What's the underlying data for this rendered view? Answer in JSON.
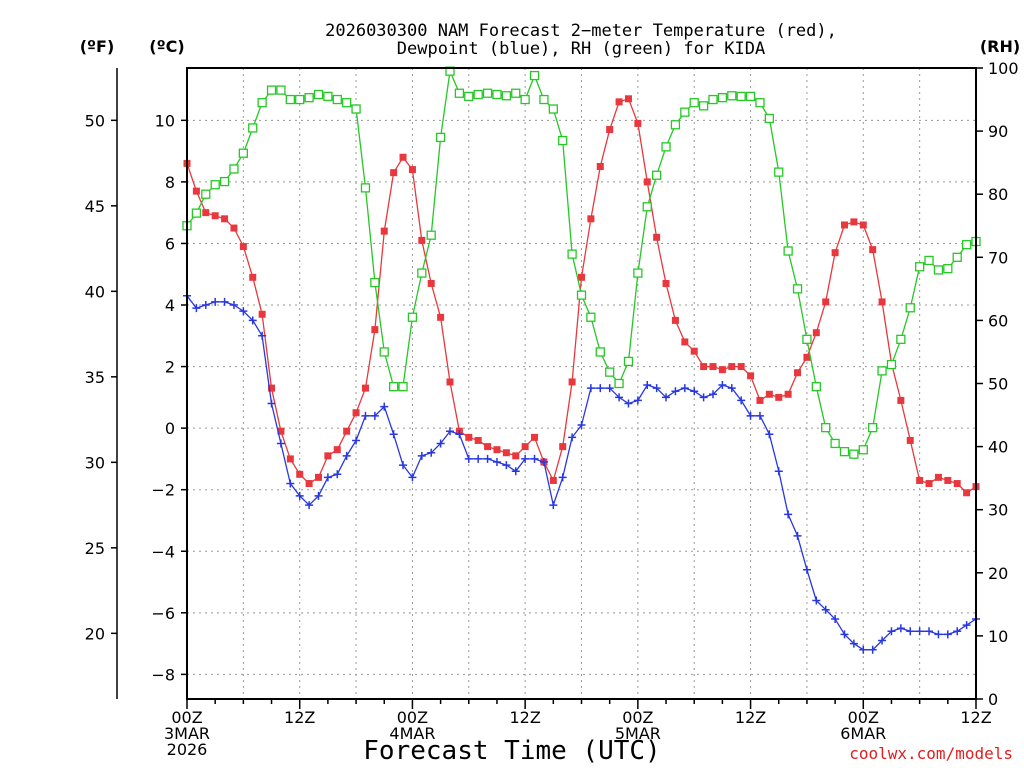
{
  "chart_data": {
    "type": "line",
    "title": "2026030300 NAM Forecast 2−meter Temperature (red),",
    "title2": "Dewpoint (blue), RH (green) for KIDA",
    "xlabel": "Forecast Time (UTC)",
    "credit": "coolwx.com/models",
    "unit_f": "(ºF)",
    "unit_c": "(ºC)",
    "unit_rh": "(RH)",
    "x_unit": "forecast hour",
    "xlim": [
      0,
      84
    ],
    "ylim_c": [
      -8.8,
      11.7
    ],
    "ylim_f": [
      16.16,
      53.06
    ],
    "ylim_rh": [
      0,
      100
    ],
    "grid": true,
    "x_ticks": [
      {
        "hour": 0,
        "lines": [
          "00Z",
          "3MAR",
          "2026"
        ]
      },
      {
        "hour": 12,
        "lines": [
          "12Z"
        ]
      },
      {
        "hour": 24,
        "lines": [
          "00Z",
          "4MAR"
        ]
      },
      {
        "hour": 36,
        "lines": [
          "12Z"
        ]
      },
      {
        "hour": 48,
        "lines": [
          "00Z",
          "5MAR"
        ]
      },
      {
        "hour": 60,
        "lines": [
          "12Z"
        ]
      },
      {
        "hour": 72,
        "lines": [
          "00Z",
          "6MAR"
        ]
      },
      {
        "hour": 84,
        "lines": [
          "12Z"
        ]
      }
    ],
    "y_ticks_c": [
      -8,
      -6,
      -4,
      -2,
      0,
      2,
      4,
      6,
      8,
      10
    ],
    "y_tick_labels_c": [
      "−8",
      "−6",
      "−4",
      "−2",
      "0",
      "2",
      "4",
      "6",
      "8",
      "10"
    ],
    "y_ticks_f": [
      20,
      25,
      30,
      35,
      40,
      45,
      50
    ],
    "y_tick_labels_f": [
      "20",
      "25",
      "30",
      "35",
      "40",
      "45",
      "50"
    ],
    "y_ticks_rh": [
      0,
      10,
      20,
      30,
      40,
      50,
      60,
      70,
      80,
      90,
      100
    ],
    "y_tick_labels_rh": [
      "0",
      "10",
      "20",
      "30",
      "40",
      "50",
      "60",
      "70",
      "80",
      "90",
      "100"
    ],
    "series": [
      {
        "name": "Temperature",
        "axis": "c",
        "color": "#e8383d",
        "marker": "filled-square",
        "x": [
          0,
          1,
          2,
          3,
          4,
          5,
          6,
          7,
          8,
          9,
          10,
          11,
          12,
          13,
          14,
          15,
          16,
          17,
          18,
          19,
          20,
          21,
          22,
          23,
          24,
          25,
          26,
          27,
          28,
          29,
          30,
          31,
          32,
          33,
          34,
          35,
          36,
          37,
          38,
          39,
          40,
          41,
          42,
          43,
          44,
          45,
          46,
          47,
          48,
          49,
          50,
          51,
          52,
          53,
          54,
          55,
          56,
          57,
          58,
          59,
          60,
          61,
          62,
          63,
          64,
          65,
          66,
          67,
          68,
          69,
          70,
          71,
          72,
          73,
          74,
          75,
          76,
          77,
          78,
          79,
          80,
          81,
          82,
          83,
          84
        ],
        "y": [
          8.6,
          7.7,
          7.0,
          6.9,
          6.8,
          6.5,
          5.9,
          4.9,
          3.7,
          1.3,
          -0.1,
          -1.0,
          -1.5,
          -1.8,
          -1.6,
          -0.9,
          -0.7,
          -0.1,
          0.5,
          1.3,
          3.2,
          6.4,
          8.3,
          8.8,
          8.4,
          6.1,
          4.7,
          3.6,
          1.5,
          -0.1,
          -0.3,
          -0.4,
          -0.6,
          -0.7,
          -0.8,
          -0.9,
          -0.6,
          -0.3,
          -1.1,
          -1.7,
          -0.6,
          1.5,
          4.9,
          6.8,
          8.5,
          9.7,
          10.6,
          10.7,
          9.9,
          8.0,
          6.2,
          4.7,
          3.5,
          2.8,
          2.5,
          2.0,
          2.0,
          1.9,
          2.0,
          2.0,
          1.7,
          0.9,
          1.1,
          1.0,
          1.1,
          1.8,
          2.3,
          3.1,
          4.1,
          5.7,
          6.6,
          6.7,
          6.6,
          5.8,
          4.1,
          2.1,
          0.9,
          -0.4,
          -1.7,
          -1.8,
          -1.6,
          -1.7,
          -1.8,
          -2.1,
          -1.9
        ]
      },
      {
        "name": "Dewpoint",
        "axis": "c",
        "color": "#2838e0",
        "marker": "plus",
        "x": [
          0,
          1,
          2,
          3,
          4,
          5,
          6,
          7,
          8,
          9,
          10,
          11,
          12,
          13,
          14,
          15,
          16,
          17,
          18,
          19,
          20,
          21,
          22,
          23,
          24,
          25,
          26,
          27,
          28,
          29,
          30,
          31,
          32,
          33,
          34,
          35,
          36,
          37,
          38,
          39,
          40,
          41,
          42,
          43,
          44,
          45,
          46,
          47,
          48,
          49,
          50,
          51,
          52,
          53,
          54,
          55,
          56,
          57,
          58,
          59,
          60,
          61,
          62,
          63,
          64,
          65,
          66,
          67,
          68,
          69,
          70,
          71,
          72,
          73,
          74,
          75,
          76,
          77,
          78,
          79,
          80,
          81,
          82,
          83,
          84
        ],
        "y": [
          4.3,
          3.9,
          4.0,
          4.1,
          4.1,
          4.0,
          3.8,
          3.5,
          3.0,
          0.8,
          -0.5,
          -1.8,
          -2.2,
          -2.5,
          -2.2,
          -1.6,
          -1.5,
          -0.9,
          -0.4,
          0.4,
          0.4,
          0.7,
          -0.2,
          -1.2,
          -1.6,
          -0.9,
          -0.8,
          -0.5,
          -0.1,
          -0.2,
          -1.0,
          -1.0,
          -1.0,
          -1.1,
          -1.2,
          -1.4,
          -1.0,
          -1.0,
          -1.1,
          -2.5,
          -1.6,
          -0.3,
          0.1,
          1.3,
          1.3,
          1.3,
          1.0,
          0.8,
          0.9,
          1.4,
          1.3,
          1.0,
          1.2,
          1.3,
          1.2,
          1.0,
          1.1,
          1.4,
          1.3,
          0.9,
          0.4,
          0.4,
          -0.2,
          -1.4,
          -2.8,
          -3.5,
          -4.6,
          -5.6,
          -5.9,
          -6.2,
          -6.7,
          -7.0,
          -7.2,
          -7.2,
          -6.9,
          -6.6,
          -6.5,
          -6.6,
          -6.6,
          -6.6,
          -6.7,
          -6.7,
          -6.6,
          -6.4,
          -6.2
        ]
      },
      {
        "name": "RH",
        "axis": "rh",
        "color": "#26c826",
        "marker": "open-square",
        "x": [
          0,
          1,
          2,
          3,
          4,
          5,
          6,
          7,
          8,
          9,
          10,
          11,
          12,
          13,
          14,
          15,
          16,
          17,
          18,
          19,
          20,
          21,
          22,
          23,
          24,
          25,
          26,
          27,
          28,
          29,
          30,
          31,
          32,
          33,
          34,
          35,
          36,
          37,
          38,
          39,
          40,
          41,
          42,
          43,
          44,
          45,
          46,
          47,
          48,
          49,
          50,
          51,
          52,
          53,
          54,
          55,
          56,
          57,
          58,
          59,
          60,
          61,
          62,
          63,
          64,
          65,
          66,
          67,
          68,
          69,
          70,
          71,
          72,
          73,
          74,
          75,
          76,
          77,
          78,
          79,
          80,
          81,
          82,
          83,
          84
        ],
        "y": [
          75,
          77,
          80,
          81.5,
          82,
          84,
          86.5,
          90.5,
          94.5,
          96.5,
          96.5,
          95,
          95,
          95.3,
          95.8,
          95.5,
          95,
          94.5,
          93.5,
          81,
          66,
          55,
          49.5,
          49.5,
          60.5,
          67.5,
          73.5,
          89,
          99.5,
          96,
          95.5,
          95.8,
          96,
          95.8,
          95.6,
          96,
          95,
          98.8,
          95,
          93.5,
          88.5,
          70.5,
          64,
          60.5,
          55,
          51.8,
          50,
          53.5,
          67.5,
          78,
          83,
          87.5,
          91,
          93,
          94.5,
          94,
          95,
          95.3,
          95.6,
          95.5,
          95.5,
          94.5,
          92,
          83.5,
          71,
          65,
          57,
          49.5,
          43,
          40.5,
          39.2,
          38.8,
          39.5,
          43,
          52,
          53,
          57,
          62,
          68.5,
          69.5,
          68,
          68.2,
          70,
          72,
          72.5
        ]
      }
    ]
  }
}
